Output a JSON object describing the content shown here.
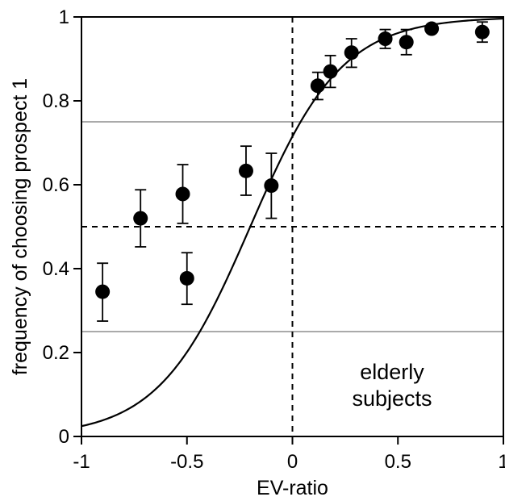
{
  "chart_data": {
    "type": "scatter",
    "xlabel": "EV-ratio",
    "ylabel": "frequency of choosing prospect 1",
    "xlim": [
      -1,
      1
    ],
    "ylim": [
      0,
      1
    ],
    "x_ticks": [
      -1,
      -0.5,
      0,
      0.5,
      1
    ],
    "x_tick_labels": [
      "-1",
      "-0.5",
      "0",
      "0.5",
      "1"
    ],
    "y_ticks": [
      0,
      0.2,
      0.4,
      0.6,
      0.8,
      1
    ],
    "y_tick_labels": [
      "0",
      "0.2",
      "0.4",
      "0.6",
      "0.8",
      "1"
    ],
    "grid": false,
    "annotation": [
      "elderly",
      "subjects"
    ],
    "points": [
      {
        "x": -0.9,
        "y": 0.345,
        "err_low": 0.275,
        "err_high": 0.413
      },
      {
        "x": -0.72,
        "y": 0.52,
        "err_low": 0.452,
        "err_high": 0.588
      },
      {
        "x": -0.52,
        "y": 0.578,
        "err_low": 0.508,
        "err_high": 0.648
      },
      {
        "x": -0.5,
        "y": 0.377,
        "err_low": 0.315,
        "err_high": 0.438
      },
      {
        "x": -0.22,
        "y": 0.633,
        "err_low": 0.575,
        "err_high": 0.692
      },
      {
        "x": -0.1,
        "y": 0.598,
        "err_low": 0.52,
        "err_high": 0.675
      },
      {
        "x": 0.12,
        "y": 0.836,
        "err_low": 0.803,
        "err_high": 0.868
      },
      {
        "x": 0.18,
        "y": 0.87,
        "err_low": 0.832,
        "err_high": 0.908
      },
      {
        "x": 0.28,
        "y": 0.915,
        "err_low": 0.88,
        "err_high": 0.948
      },
      {
        "x": 0.44,
        "y": 0.948,
        "err_low": 0.925,
        "err_high": 0.97
      },
      {
        "x": 0.54,
        "y": 0.94,
        "err_low": 0.91,
        "err_high": 0.97
      },
      {
        "x": 0.66,
        "y": 0.972,
        "err_low": 0.965,
        "err_high": 0.978
      },
      {
        "x": 0.9,
        "y": 0.964,
        "err_low": 0.94,
        "err_high": 0.988
      }
    ],
    "fit_curve": {
      "form": "logistic",
      "x0": -0.2,
      "slope": 4.6
    },
    "reference_lines": {
      "dashed_horizontal_y": 0.5,
      "dashed_vertical_x": 0,
      "gray_horizontal_y": [
        0.25,
        0.75
      ]
    },
    "colors": {
      "points": "#000000",
      "fit_curve": "#000000",
      "dashed_lines": "#000000",
      "gray_lines": "#aaaaaa"
    }
  }
}
